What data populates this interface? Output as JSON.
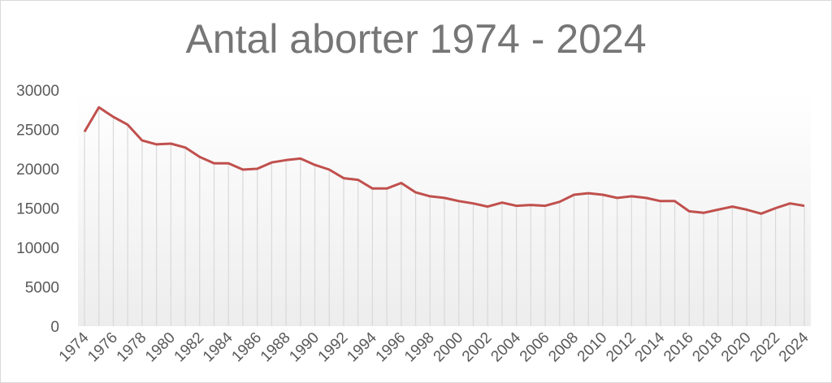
{
  "chart_data": {
    "type": "line",
    "title": "Antal aborter 1974 - 2024",
    "xlabel": "",
    "ylabel": "",
    "ylim": [
      0,
      30000
    ],
    "yticks": [
      0,
      5000,
      10000,
      15000,
      20000,
      25000,
      30000
    ],
    "xticks": [
      1974,
      1976,
      1978,
      1980,
      1982,
      1984,
      1986,
      1988,
      1990,
      1992,
      1994,
      1996,
      1998,
      2000,
      2002,
      2004,
      2006,
      2008,
      2010,
      2012,
      2014,
      2016,
      2018,
      2020,
      2022,
      2024
    ],
    "grid": false,
    "drop_lines": true,
    "line_color": "#c0504d",
    "x": [
      1974,
      1975,
      1976,
      1977,
      1978,
      1979,
      1980,
      1981,
      1982,
      1983,
      1984,
      1985,
      1986,
      1987,
      1988,
      1989,
      1990,
      1991,
      1992,
      1993,
      1994,
      1995,
      1996,
      1997,
      1998,
      1999,
      2000,
      2001,
      2002,
      2003,
      2004,
      2005,
      2006,
      2007,
      2008,
      2009,
      2010,
      2011,
      2012,
      2013,
      2014,
      2015,
      2016,
      2017,
      2018,
      2019,
      2020,
      2021,
      2022,
      2023,
      2024
    ],
    "values": [
      24700,
      27800,
      26600,
      25600,
      23600,
      23100,
      23200,
      22700,
      21500,
      20700,
      20700,
      19900,
      20000,
      20800,
      21100,
      21300,
      20500,
      19900,
      18800,
      18600,
      17500,
      17500,
      18200,
      17000,
      16500,
      16300,
      15900,
      15600,
      15200,
      15700,
      15300,
      15400,
      15300,
      15800,
      16700,
      16900,
      16700,
      16300,
      16500,
      16300,
      15900,
      15900,
      14600,
      14400,
      14800,
      15200,
      14800,
      14300,
      15000,
      15600,
      15300
    ]
  }
}
